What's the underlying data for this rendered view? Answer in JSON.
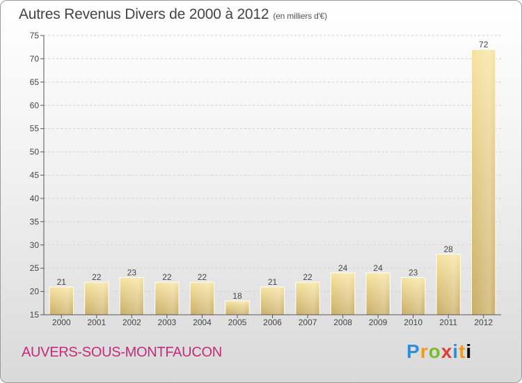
{
  "title": "Autres Revenus Divers de 2000 à 2012",
  "subtitle": "(en milliers d'€)",
  "location": "AUVERS-SOUS-MONTFAUCON",
  "logo": [
    "P",
    "r",
    "o",
    "x",
    "i",
    "t",
    "i"
  ],
  "colors": {
    "bar_light": "#f7e3a0",
    "bar_dark": "#c9ad65",
    "grid": "#cfcfcf",
    "location_text": "#c72a79"
  },
  "chart_data": {
    "type": "bar",
    "categories": [
      "2000",
      "2001",
      "2002",
      "2003",
      "2004",
      "2005",
      "2006",
      "2007",
      "2008",
      "2009",
      "2010",
      "2011",
      "2012"
    ],
    "values": [
      21,
      22,
      23,
      22,
      22,
      18,
      21,
      22,
      24,
      24,
      23,
      28,
      72
    ],
    "title": "Autres Revenus Divers de 2000 à 2012",
    "subtitle": "(en milliers d'€)",
    "xlabel": "",
    "ylabel": "",
    "ylim": [
      15,
      75
    ],
    "yticks": [
      15,
      20,
      25,
      30,
      35,
      40,
      45,
      50,
      55,
      60,
      65,
      70,
      75
    ],
    "grid": true
  }
}
